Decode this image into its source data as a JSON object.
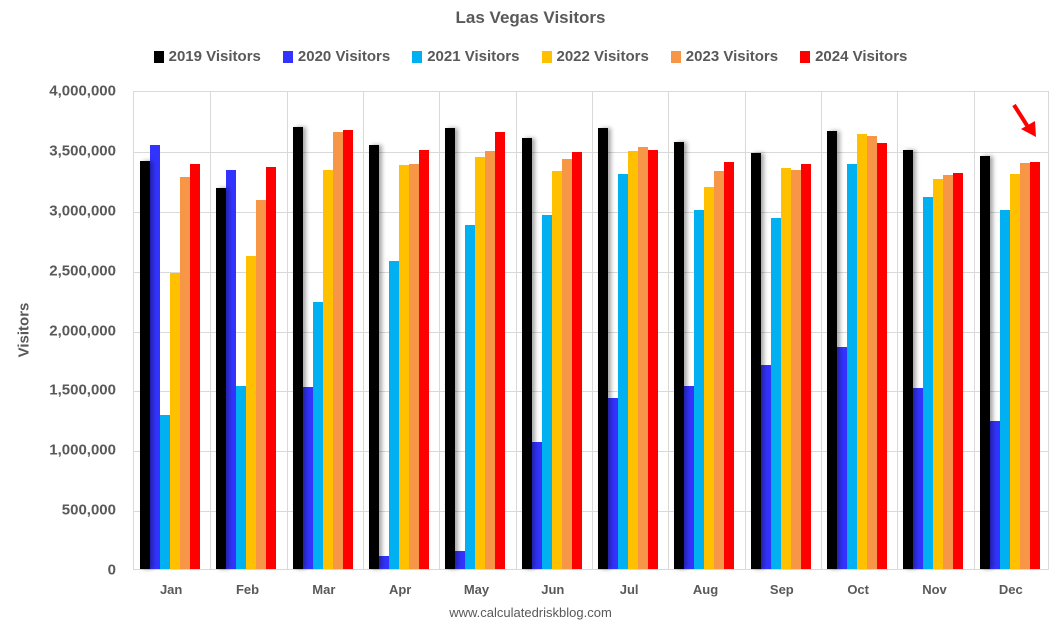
{
  "chart_data": {
    "type": "bar",
    "title": "Las Vegas Visitors",
    "xlabel": "",
    "ylabel": "Visitors",
    "ylim": [
      0,
      4000000
    ],
    "yticks": [
      "0",
      "500,000",
      "1,000,000",
      "1,500,000",
      "2,000,000",
      "2,500,000",
      "3,000,000",
      "3,500,000",
      "4,000,000"
    ],
    "grid": true,
    "legend_position": "top",
    "categories": [
      "Jan",
      "Feb",
      "Mar",
      "Apr",
      "May",
      "Jun",
      "Jul",
      "Aug",
      "Sep",
      "Oct",
      "Nov",
      "Dec"
    ],
    "series": [
      {
        "name": "2019 Visitors",
        "color": "#000000",
        "values": [
          3410000,
          3180000,
          3690000,
          3540000,
          3680000,
          3600000,
          3680000,
          3570000,
          3470000,
          3660000,
          3500000,
          3450000
        ]
      },
      {
        "name": "2020 Visitors",
        "color": "#3333FF",
        "values": [
          3540000,
          3330000,
          1520000,
          110000,
          150000,
          1060000,
          1430000,
          1530000,
          1700000,
          1850000,
          1510000,
          1240000
        ]
      },
      {
        "name": "2021 Visitors",
        "color": "#00B0F0",
        "values": [
          1290000,
          1530000,
          2230000,
          2570000,
          2870000,
          2960000,
          3300000,
          3000000,
          2930000,
          3380000,
          3110000,
          3000000
        ]
      },
      {
        "name": "2022 Visitors",
        "color": "#FFC000",
        "values": [
          2470000,
          2610000,
          3330000,
          3370000,
          3440000,
          3320000,
          3490000,
          3190000,
          3350000,
          3630000,
          3260000,
          3300000
        ]
      },
      {
        "name": "2023 Visitors",
        "color": "#F79646",
        "values": [
          3270000,
          3080000,
          3650000,
          3380000,
          3490000,
          3420000,
          3520000,
          3320000,
          3330000,
          3620000,
          3290000,
          3390000
        ]
      },
      {
        "name": "2024 Visitors",
        "color": "#FF0000",
        "values": [
          3380000,
          3360000,
          3670000,
          3500000,
          3650000,
          3480000,
          3500000,
          3400000,
          3380000,
          3560000,
          3310000,
          3400000
        ]
      }
    ],
    "annotations": [
      "red arrow pointing to Dec 2024 bar"
    ],
    "source": "www.calculatedriskblog.com"
  }
}
